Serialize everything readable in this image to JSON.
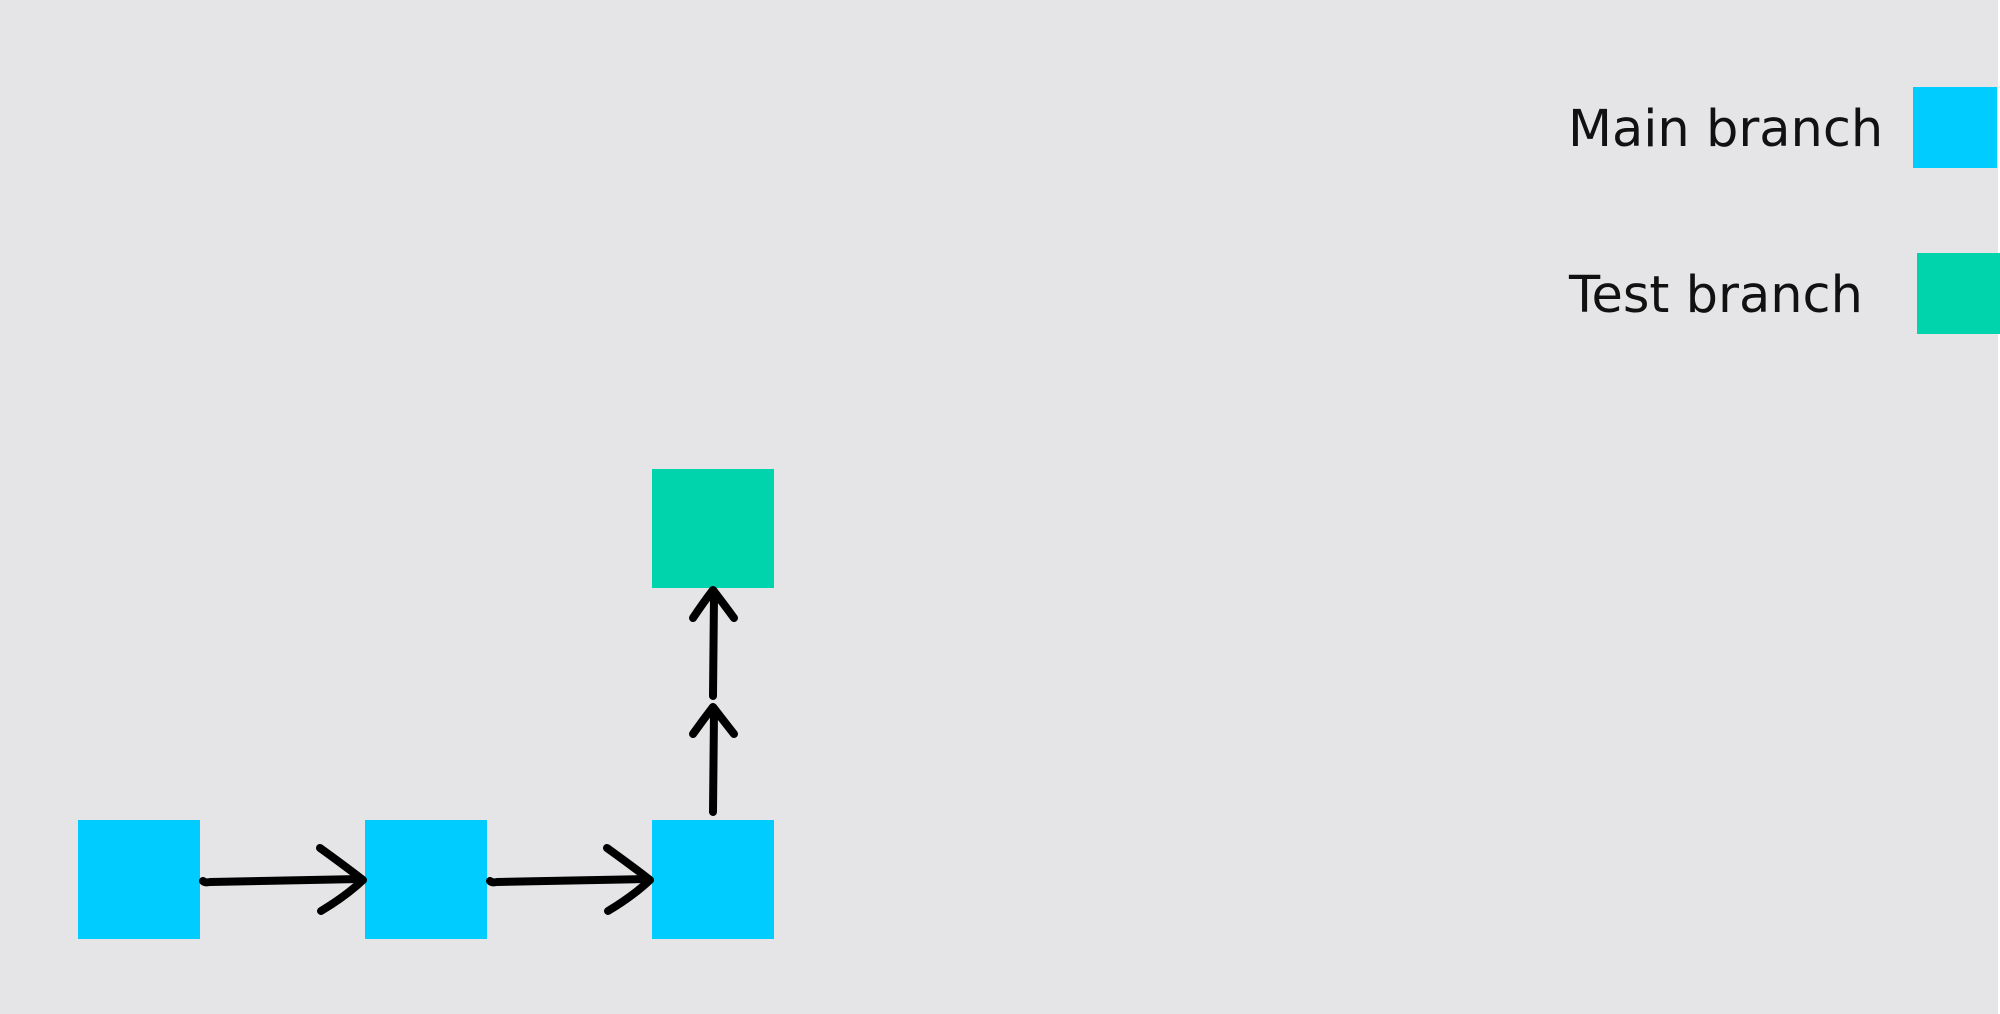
{
  "legend": {
    "items": [
      {
        "label": "Main branch",
        "color": "#00ccff"
      },
      {
        "label": "Test branch",
        "color": "#00d4ad"
      }
    ]
  },
  "diagram": {
    "background": "#e5e5e7",
    "commits": [
      {
        "branch": "main",
        "color": "#00ccff"
      },
      {
        "branch": "main",
        "color": "#00ccff"
      },
      {
        "branch": "main",
        "color": "#00ccff"
      },
      {
        "branch": "test",
        "color": "#00d4ad"
      }
    ],
    "edges": [
      {
        "from": 0,
        "to": 1
      },
      {
        "from": 1,
        "to": 2
      },
      {
        "from": 2,
        "to": 3
      }
    ]
  }
}
